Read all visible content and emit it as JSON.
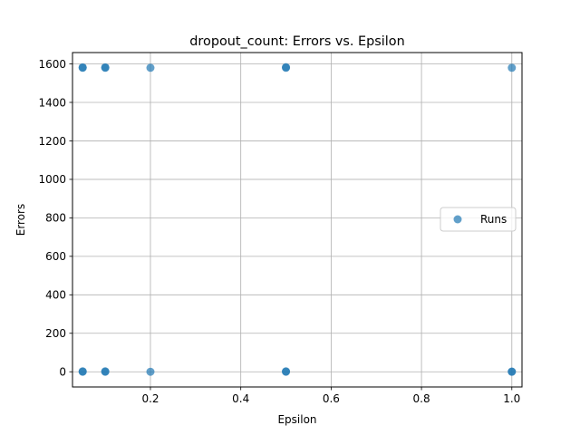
{
  "chart_data": {
    "type": "scatter",
    "title": "dropout_count: Errors vs. Epsilon",
    "xlabel": "Epsilon",
    "ylabel": "Errors",
    "xlim": [
      0.0275,
      1.0225
    ],
    "ylim": [
      -79,
      1659
    ],
    "xticks": [
      0.2,
      0.4,
      0.6,
      0.8,
      1.0
    ],
    "xtick_labels": [
      "0.2",
      "0.4",
      "0.6",
      "0.8",
      "1.0"
    ],
    "yticks": [
      0,
      200,
      400,
      600,
      800,
      1000,
      1200,
      1400,
      1600
    ],
    "ytick_labels": [
      "0",
      "200",
      "400",
      "600",
      "800",
      "1000",
      "1200",
      "1400",
      "1600"
    ],
    "grid": true,
    "legend": {
      "position": "center-right",
      "entries": [
        "Runs"
      ]
    },
    "colors": {
      "series": "#1f77b4"
    },
    "series": [
      {
        "name": "Runs",
        "x": [
          0.05,
          0.05,
          0.05,
          0.05,
          0.1,
          0.1,
          0.1,
          0.1,
          0.2,
          0.2,
          0.5,
          0.5,
          0.5,
          0.5,
          1.0,
          1.0,
          1.0
        ],
        "y": [
          1580,
          1582,
          0,
          2,
          1580,
          1582,
          0,
          2,
          1580,
          0,
          1580,
          1583,
          0,
          2,
          1580,
          0,
          1
        ]
      }
    ]
  }
}
